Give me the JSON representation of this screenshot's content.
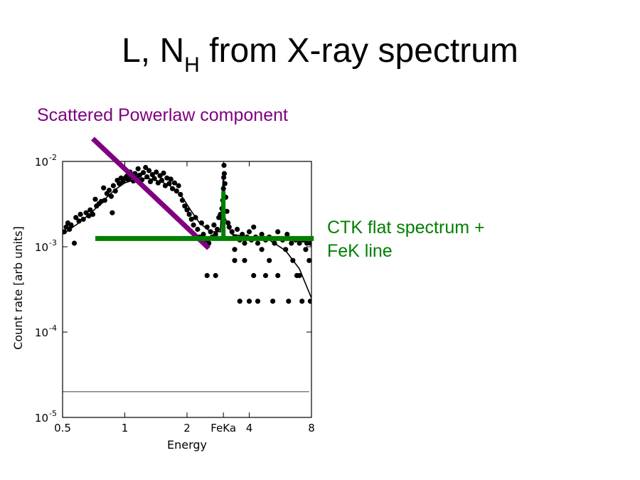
{
  "title": {
    "main_left": "L, N",
    "subscript": "H",
    "main_right": " from X-ray spectrum"
  },
  "annotations": {
    "powerlaw": {
      "text": "Scattered Powerlaw component",
      "color": "#800080"
    },
    "ctk": {
      "lines": [
        "CTK flat spectrum +",
        "FeK line"
      ],
      "color": "#008000"
    }
  },
  "chart_data": {
    "type": "scatter",
    "xlabel": "Energy",
    "ylabel": "Count rate [arb units]",
    "x_scale": "log",
    "y_scale": "log",
    "xlim": [
      0.5,
      8
    ],
    "ylim": [
      1e-05,
      0.01
    ],
    "x_ticks": [
      {
        "value": 0.5,
        "label": "0.5"
      },
      {
        "value": 1,
        "label": "1"
      },
      {
        "value": 2,
        "label": "2"
      },
      {
        "value": 3,
        "label": "FeKa"
      },
      {
        "value": 4,
        "label": "4"
      },
      {
        "value": 8,
        "label": "8"
      }
    ],
    "y_ticks": [
      {
        "value": 1e-05,
        "base": "10",
        "exp": "-5"
      },
      {
        "value": 0.0001,
        "base": "10",
        "exp": "-4"
      },
      {
        "value": 0.001,
        "base": "10",
        "exp": "-3"
      },
      {
        "value": 0.01,
        "base": "10",
        "exp": "-2"
      }
    ],
    "grid": false,
    "point_color": "#000000",
    "series": [
      {
        "type": "scatter",
        "points": [
          [
            0.51,
            0.0015
          ],
          [
            0.52,
            0.0017
          ],
          [
            0.53,
            0.0019
          ],
          [
            0.54,
            0.0016
          ],
          [
            0.55,
            0.0018
          ],
          [
            0.57,
            0.0011
          ],
          [
            0.58,
            0.0022
          ],
          [
            0.6,
            0.002
          ],
          [
            0.61,
            0.0024
          ],
          [
            0.63,
            0.0021
          ],
          [
            0.65,
            0.0025
          ],
          [
            0.67,
            0.0023
          ],
          [
            0.68,
            0.0027
          ],
          [
            0.7,
            0.0024
          ],
          [
            0.72,
            0.0036
          ],
          [
            0.73,
            0.003
          ],
          [
            0.75,
            0.0032
          ],
          [
            0.77,
            0.0034
          ],
          [
            0.79,
            0.0049
          ],
          [
            0.8,
            0.0035
          ],
          [
            0.82,
            0.0042
          ],
          [
            0.84,
            0.0046
          ],
          [
            0.86,
            0.0039
          ],
          [
            0.87,
            0.0025
          ],
          [
            0.88,
            0.0052
          ],
          [
            0.9,
            0.0045
          ],
          [
            0.92,
            0.006
          ],
          [
            0.94,
            0.0055
          ],
          [
            0.96,
            0.0064
          ],
          [
            0.98,
            0.0058
          ],
          [
            1.0,
            0.0063
          ],
          [
            1.02,
            0.0067
          ],
          [
            1.04,
            0.0061
          ],
          [
            1.06,
            0.0075
          ],
          [
            1.08,
            0.0066
          ],
          [
            1.1,
            0.0059
          ],
          [
            1.12,
            0.0072
          ],
          [
            1.14,
            0.0064
          ],
          [
            1.16,
            0.0082
          ],
          [
            1.18,
            0.0069
          ],
          [
            1.21,
            0.0061
          ],
          [
            1.23,
            0.0074
          ],
          [
            1.26,
            0.0085
          ],
          [
            1.28,
            0.0066
          ],
          [
            1.31,
            0.0078
          ],
          [
            1.33,
            0.0058
          ],
          [
            1.36,
            0.007
          ],
          [
            1.39,
            0.0063
          ],
          [
            1.42,
            0.0075
          ],
          [
            1.45,
            0.0056
          ],
          [
            1.48,
            0.0068
          ],
          [
            1.51,
            0.006
          ],
          [
            1.54,
            0.0073
          ],
          [
            1.57,
            0.0052
          ],
          [
            1.6,
            0.0064
          ],
          [
            1.64,
            0.0055
          ],
          [
            1.67,
            0.0062
          ],
          [
            1.7,
            0.0048
          ],
          [
            1.74,
            0.0056
          ],
          [
            1.78,
            0.0045
          ],
          [
            1.82,
            0.0052
          ],
          [
            1.86,
            0.0041
          ],
          [
            1.9,
            0.0035
          ],
          [
            1.95,
            0.003
          ],
          [
            2.0,
            0.0027
          ],
          [
            2.05,
            0.0024
          ],
          [
            2.1,
            0.0021
          ],
          [
            2.15,
            0.0018
          ],
          [
            2.2,
            0.0022
          ],
          [
            2.25,
            0.0016
          ],
          [
            2.3,
            0.0013
          ],
          [
            2.35,
            0.0019
          ],
          [
            2.4,
            0.0014
          ],
          [
            2.45,
            0.0012
          ],
          [
            2.5,
            0.0017
          ],
          [
            2.55,
            0.0011
          ],
          [
            2.6,
            0.0015
          ],
          [
            2.65,
            0.0013
          ],
          [
            2.7,
            0.0018
          ],
          [
            2.75,
            0.0014
          ],
          [
            2.8,
            0.0016
          ],
          [
            2.85,
            0.0022
          ],
          [
            2.9,
            0.0024
          ],
          [
            2.95,
            0.0028
          ],
          [
            2.98,
            0.0035
          ],
          [
            3.0,
            0.0048
          ],
          [
            3.01,
            0.0065
          ],
          [
            3.02,
            0.009
          ],
          [
            3.03,
            0.0072
          ],
          [
            3.05,
            0.0055
          ],
          [
            3.08,
            0.0038
          ],
          [
            3.12,
            0.0026
          ],
          [
            3.16,
            0.0019
          ],
          [
            3.2,
            0.0017
          ],
          [
            3.3,
            0.0015
          ],
          [
            3.4,
            0.0013
          ],
          [
            3.5,
            0.0016
          ],
          [
            3.6,
            0.0012
          ],
          [
            3.7,
            0.0014
          ],
          [
            3.8,
            0.0011
          ],
          [
            3.9,
            0.0013
          ],
          [
            4.0,
            0.0015
          ],
          [
            4.1,
            0.0012
          ],
          [
            4.2,
            0.0017
          ],
          [
            4.3,
            0.0013
          ],
          [
            4.4,
            0.0011
          ],
          [
            4.6,
            0.0014
          ],
          [
            4.8,
            0.0012
          ],
          [
            5.0,
            0.0013
          ],
          [
            5.3,
            0.0011
          ],
          [
            5.5,
            0.0015
          ],
          [
            5.8,
            0.0012
          ],
          [
            6.1,
            0.0014
          ],
          [
            6.4,
            0.0011
          ],
          [
            6.7,
            0.0012
          ],
          [
            7.0,
            0.0011
          ],
          [
            7.3,
            0.0012
          ],
          [
            7.6,
            0.0011
          ],
          [
            7.9,
            0.0011
          ],
          [
            2.5,
            0.00046
          ],
          [
            2.75,
            0.00046
          ],
          [
            3.4,
            0.00093
          ],
          [
            3.8,
            0.00069
          ],
          [
            4.2,
            0.00046
          ],
          [
            4.6,
            0.00093
          ],
          [
            5.0,
            0.00069
          ],
          [
            5.5,
            0.00046
          ],
          [
            6.0,
            0.00093
          ],
          [
            6.5,
            0.00069
          ],
          [
            7.0,
            0.00046
          ],
          [
            7.5,
            0.00093
          ],
          [
            3.6,
            0.00023
          ],
          [
            4.0,
            0.00023
          ],
          [
            4.4,
            0.00023
          ],
          [
            5.2,
            0.00023
          ],
          [
            6.2,
            0.00023
          ],
          [
            7.2,
            0.00023
          ],
          [
            7.9,
            0.00023
          ],
          [
            3.4,
            0.00069
          ],
          [
            4.8,
            0.00046
          ],
          [
            6.8,
            0.00046
          ],
          [
            7.8,
            0.00069
          ]
        ]
      },
      {
        "type": "line",
        "name": "",
        "points": [
          [
            0.5,
            0.0014
          ],
          [
            0.6,
            0.0019
          ],
          [
            0.7,
            0.0026
          ],
          [
            0.8,
            0.0036
          ],
          [
            0.9,
            0.0047
          ],
          [
            1.0,
            0.0056
          ],
          [
            1.15,
            0.0063
          ],
          [
            1.3,
            0.0063
          ],
          [
            1.5,
            0.0058
          ],
          [
            1.7,
            0.005
          ],
          [
            1.9,
            0.0038
          ],
          [
            2.1,
            0.0026
          ],
          [
            2.3,
            0.0019
          ],
          [
            2.6,
            0.0015
          ],
          [
            2.9,
            0.0015
          ],
          [
            3.0,
            0.0075
          ],
          [
            3.05,
            0.0022
          ],
          [
            3.3,
            0.0014
          ],
          [
            4.0,
            0.0013
          ],
          [
            5.0,
            0.0012
          ],
          [
            6.0,
            0.0009
          ],
          [
            7.0,
            0.00055
          ],
          [
            8.0,
            0.00025
          ]
        ]
      },
      {
        "type": "hline",
        "y": 2e-05,
        "x_range": [
          0.5,
          7.8
        ]
      }
    ],
    "overlays": {
      "powerlaw_line": {
        "from": [
          0.7,
          0.0185
        ],
        "to": [
          2.55,
          0.00096
        ],
        "color": "#800080"
      },
      "ctk_flat": {
        "from": [
          0.72,
          0.00125
        ],
        "to": [
          8.2,
          0.00125
        ],
        "color": "#008000"
      },
      "fek_line": {
        "x": 3.0,
        "y_range": [
          0.00125,
          0.0045
        ],
        "color": "#008000"
      }
    }
  }
}
